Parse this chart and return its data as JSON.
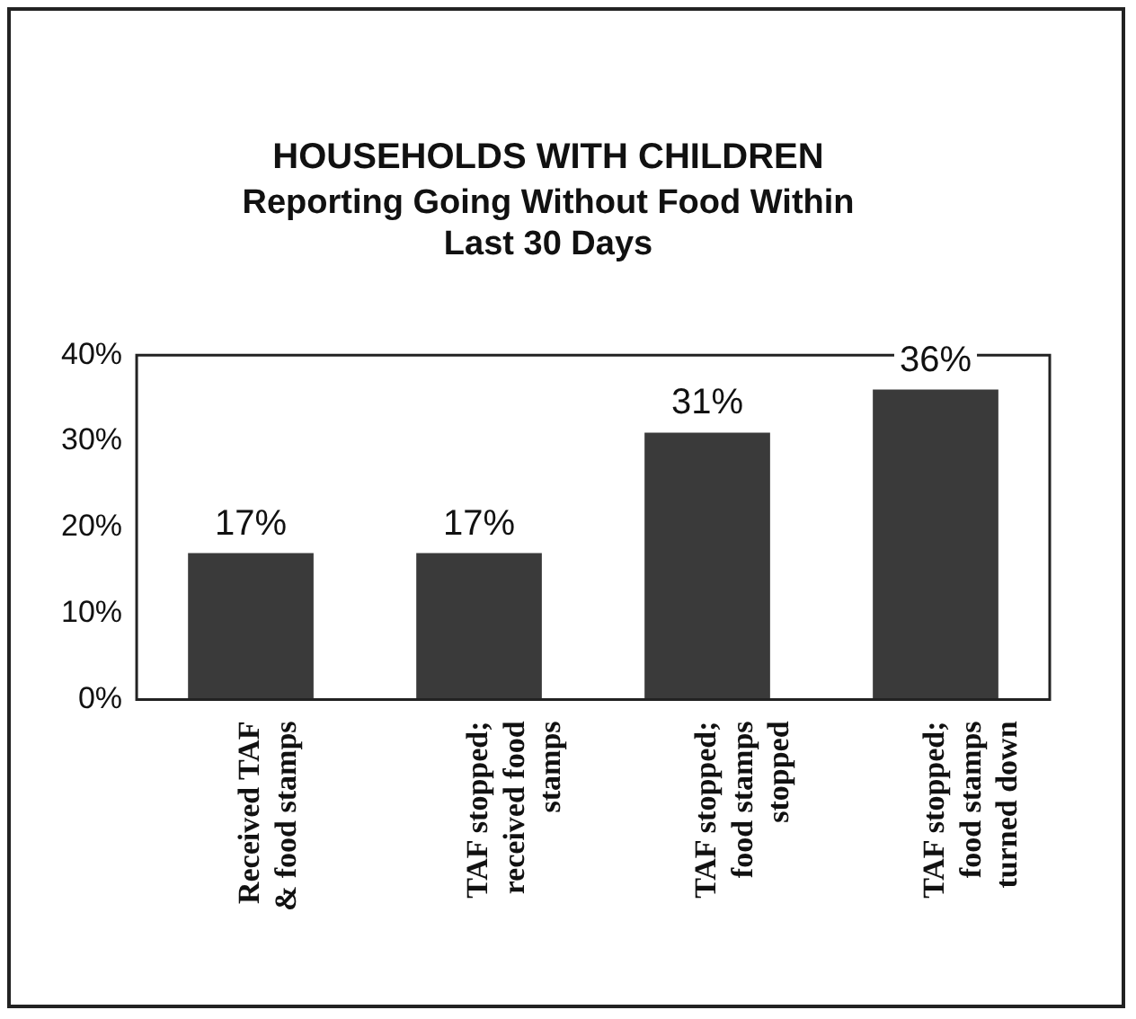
{
  "chart_data": {
    "type": "bar",
    "title": "HOUSEHOLDS WITH CHILDREN",
    "subtitle": "Reporting Going Without Food Within Last 30 Days",
    "categories": [
      "Received TAF & food stamps",
      "TAF stopped; received food stamps",
      "TAF stopped; food stamps stopped",
      "TAF stopped; food stamps turned down"
    ],
    "values": [
      17,
      17,
      31,
      36
    ],
    "color": "#3a3a3a",
    "value_labels": [
      "17%",
      "17%",
      "31%",
      "36%"
    ],
    "ylim": [
      0,
      40
    ],
    "yticks": [
      {
        "value": 0,
        "label": "0%"
      },
      {
        "value": 10,
        "label": "10%"
      },
      {
        "value": 20,
        "label": "20%"
      },
      {
        "value": 30,
        "label": "30%"
      },
      {
        "value": 40,
        "label": "40%"
      }
    ],
    "grid": false,
    "legend": false
  }
}
